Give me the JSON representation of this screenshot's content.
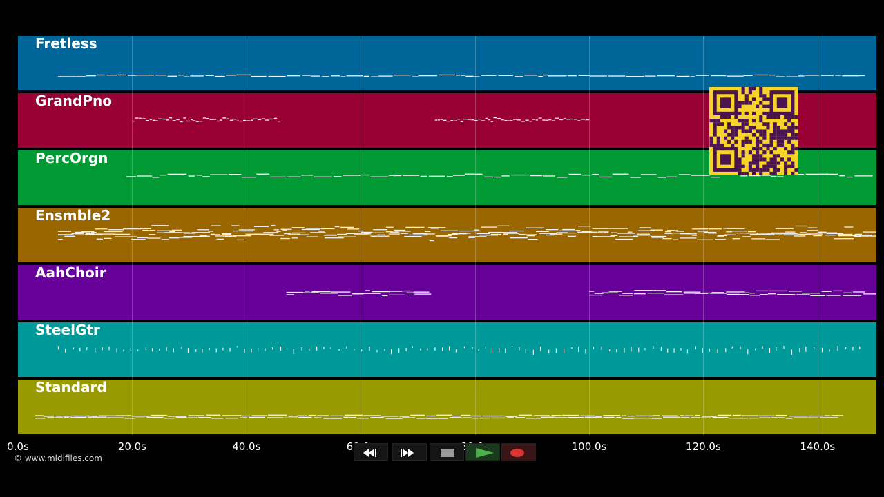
{
  "tracks": [
    {
      "name": "Fretless",
      "color": "#006699"
    },
    {
      "name": "GrandPno",
      "color": "#990033"
    },
    {
      "name": "PercOrgn",
      "color": "#009933"
    },
    {
      "name": "Ensmble2",
      "color": "#996600"
    },
    {
      "name": "AahChoir",
      "color": "#660099"
    },
    {
      "name": "SteelGtr",
      "color": "#009999"
    },
    {
      "name": "Standard",
      "color": "#999900"
    }
  ],
  "timeline": {
    "ticks": [
      "0.0s",
      "20.0s",
      "40.0s",
      "60.0s",
      "80.0s",
      "100.0s",
      "120.0s",
      "140.0s"
    ],
    "tick_seconds": [
      0,
      20,
      40,
      60,
      80,
      100,
      120,
      140
    ]
  },
  "copyright": "© www.midifiles.com",
  "qr_color": "#f6d42a",
  "controls": {
    "rewind": "rewind-icon",
    "fast_forward": "fast-forward-icon",
    "stop": "stop-icon",
    "play": "play-icon",
    "record": "record-icon"
  }
}
